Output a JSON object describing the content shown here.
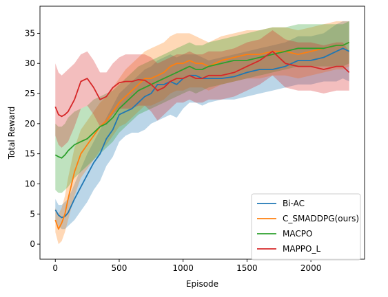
{
  "chart_data": {
    "type": "line",
    "xlabel": "Episode",
    "ylabel": "Total Reward",
    "xlim": [
      -120,
      2420
    ],
    "ylim": [
      -2.5,
      39.5
    ],
    "xticks": [
      0,
      500,
      1000,
      1500,
      2000
    ],
    "yticks": [
      0,
      5,
      10,
      15,
      20,
      25,
      30,
      35
    ],
    "legend_position": "lower-right",
    "series": [
      {
        "name": "Bi-AC",
        "color": "#1f77b4",
        "x": [
          0,
          25,
          50,
          75,
          100,
          150,
          200,
          250,
          300,
          350,
          400,
          450,
          500,
          550,
          600,
          650,
          700,
          750,
          800,
          850,
          900,
          950,
          1000,
          1050,
          1100,
          1150,
          1200,
          1300,
          1400,
          1500,
          1600,
          1700,
          1800,
          1900,
          2000,
          2100,
          2200,
          2250,
          2300
        ],
        "mean": [
          5.7,
          4.8,
          4.4,
          4.6,
          5.2,
          7.5,
          9.5,
          11.5,
          13.5,
          15.0,
          17.5,
          19.0,
          21.5,
          22.0,
          22.5,
          23.5,
          24.5,
          25.0,
          26.5,
          26.5,
          27.0,
          26.5,
          27.5,
          28.0,
          28.0,
          27.5,
          27.5,
          27.5,
          27.8,
          28.5,
          29.0,
          29.0,
          29.5,
          30.5,
          30.5,
          31.0,
          32.0,
          32.5,
          32.0
        ],
        "lower": [
          4.0,
          3.0,
          2.5,
          2.5,
          3.0,
          4.0,
          5.5,
          7.0,
          9.0,
          10.5,
          13.0,
          14.5,
          17.0,
          18.0,
          18.5,
          18.5,
          19.0,
          20.0,
          20.5,
          21.0,
          21.5,
          21.0,
          22.5,
          23.5,
          23.5,
          23.0,
          23.5,
          24.0,
          24.0,
          24.5,
          25.0,
          25.5,
          26.0,
          26.5,
          26.5,
          27.0,
          27.0,
          27.5,
          27.0
        ],
        "upper": [
          7.5,
          6.5,
          6.5,
          7.0,
          7.5,
          10.0,
          12.5,
          15.0,
          17.0,
          19.0,
          21.0,
          23.0,
          25.0,
          26.0,
          27.0,
          28.0,
          29.0,
          29.5,
          30.5,
          31.0,
          31.5,
          31.0,
          31.5,
          31.5,
          31.5,
          31.0,
          30.5,
          31.0,
          31.5,
          32.0,
          32.5,
          33.0,
          33.5,
          34.5,
          34.5,
          35.0,
          36.5,
          37.0,
          37.0
        ]
      },
      {
        "name": "C_SMADDPG(ours)",
        "color": "#ff7f0e",
        "x": [
          0,
          25,
          50,
          75,
          100,
          150,
          200,
          250,
          300,
          350,
          400,
          450,
          500,
          550,
          600,
          650,
          700,
          750,
          800,
          850,
          900,
          950,
          1000,
          1050,
          1100,
          1150,
          1200,
          1300,
          1400,
          1500,
          1600,
          1700,
          1800,
          1900,
          2000,
          2100,
          2200,
          2250,
          2300
        ],
        "mean": [
          4.0,
          2.5,
          3.5,
          5.0,
          7.5,
          12.0,
          15.0,
          16.5,
          18.0,
          19.5,
          20.5,
          22.0,
          23.5,
          24.5,
          25.5,
          26.5,
          27.5,
          27.5,
          28.0,
          28.5,
          29.5,
          30.0,
          30.0,
          30.5,
          30.0,
          30.0,
          29.5,
          30.5,
          31.0,
          31.5,
          31.5,
          32.0,
          32.0,
          31.5,
          32.0,
          32.5,
          33.0,
          33.0,
          33.5
        ],
        "lower": [
          2.0,
          0.0,
          0.5,
          2.0,
          4.0,
          8.0,
          11.0,
          12.5,
          14.0,
          15.5,
          16.5,
          18.0,
          19.5,
          20.0,
          21.0,
          22.0,
          23.0,
          23.0,
          23.5,
          24.0,
          25.0,
          25.5,
          25.5,
          26.0,
          26.0,
          26.0,
          25.5,
          26.5,
          27.0,
          27.5,
          27.5,
          28.0,
          28.0,
          27.5,
          28.0,
          28.5,
          29.0,
          29.0,
          29.5
        ],
        "upper": [
          6.0,
          5.0,
          6.0,
          8.0,
          11.0,
          16.0,
          19.0,
          20.5,
          22.0,
          23.5,
          24.5,
          26.0,
          27.5,
          29.0,
          30.0,
          31.0,
          32.0,
          32.5,
          33.0,
          33.5,
          34.5,
          35.0,
          35.0,
          35.0,
          34.5,
          34.0,
          33.5,
          34.5,
          35.0,
          35.5,
          35.5,
          36.0,
          36.0,
          35.5,
          36.0,
          36.5,
          37.0,
          37.0,
          37.0
        ]
      },
      {
        "name": "MACPO",
        "color": "#2ca02c",
        "x": [
          0,
          25,
          50,
          75,
          100,
          150,
          200,
          250,
          300,
          350,
          400,
          450,
          500,
          550,
          600,
          650,
          700,
          750,
          800,
          850,
          900,
          950,
          1000,
          1050,
          1100,
          1150,
          1200,
          1300,
          1400,
          1500,
          1600,
          1700,
          1800,
          1900,
          2000,
          2100,
          2200,
          2250,
          2300
        ],
        "mean": [
          14.8,
          14.5,
          14.3,
          14.8,
          15.5,
          16.5,
          17.0,
          17.5,
          18.5,
          19.5,
          20.0,
          21.0,
          22.5,
          23.5,
          24.5,
          25.5,
          26.0,
          26.5,
          27.0,
          27.5,
          28.0,
          28.5,
          29.0,
          29.5,
          29.0,
          29.0,
          29.5,
          30.0,
          30.5,
          30.5,
          31.0,
          31.5,
          32.0,
          32.5,
          32.5,
          32.5,
          33.0,
          33.0,
          33.5
        ],
        "lower": [
          9.0,
          8.5,
          8.5,
          9.0,
          9.5,
          11.0,
          12.0,
          13.0,
          14.0,
          15.0,
          16.0,
          17.0,
          18.5,
          19.5,
          20.5,
          21.5,
          22.0,
          22.5,
          23.0,
          23.5,
          24.0,
          24.5,
          25.0,
          25.5,
          25.0,
          25.5,
          26.0,
          26.5,
          27.0,
          27.5,
          28.0,
          28.5,
          29.0,
          29.5,
          29.5,
          29.5,
          29.5,
          29.5,
          30.0
        ],
        "upper": [
          20.0,
          19.5,
          19.5,
          20.0,
          21.0,
          22.0,
          22.5,
          23.0,
          24.0,
          24.5,
          25.0,
          25.5,
          26.5,
          27.5,
          28.5,
          29.5,
          30.0,
          30.5,
          31.0,
          31.5,
          32.0,
          32.5,
          33.0,
          33.5,
          33.0,
          33.0,
          33.5,
          34.0,
          34.5,
          35.0,
          35.5,
          36.0,
          36.0,
          36.5,
          36.5,
          36.5,
          36.5,
          36.5,
          37.0
        ]
      },
      {
        "name": "MAPPO_L",
        "color": "#d62728",
        "x": [
          0,
          25,
          50,
          75,
          100,
          150,
          200,
          250,
          300,
          350,
          400,
          450,
          500,
          550,
          600,
          650,
          700,
          750,
          800,
          850,
          900,
          950,
          1000,
          1050,
          1100,
          1150,
          1200,
          1300,
          1400,
          1500,
          1600,
          1700,
          1800,
          1900,
          2000,
          2100,
          2200,
          2250,
          2300
        ],
        "mean": [
          22.8,
          21.5,
          21.2,
          21.5,
          22.0,
          24.0,
          27.0,
          27.5,
          26.0,
          24.0,
          24.5,
          26.0,
          26.8,
          27.0,
          27.0,
          27.3,
          27.2,
          26.5,
          25.5,
          26.0,
          27.0,
          27.5,
          27.5,
          28.0,
          27.5,
          27.5,
          28.0,
          28.0,
          28.5,
          29.5,
          30.5,
          32.0,
          30.0,
          29.5,
          29.5,
          29.0,
          29.5,
          29.5,
          28.5
        ],
        "lower": [
          18.0,
          16.5,
          16.0,
          16.5,
          17.0,
          19.5,
          22.5,
          23.0,
          21.5,
          19.5,
          20.0,
          21.5,
          22.5,
          22.5,
          22.5,
          23.0,
          23.0,
          22.0,
          20.5,
          21.5,
          22.5,
          23.5,
          23.5,
          24.0,
          23.5,
          23.5,
          24.0,
          24.0,
          24.5,
          25.5,
          26.5,
          28.0,
          26.0,
          25.5,
          25.5,
          25.0,
          25.5,
          25.5,
          25.5
        ],
        "upper": [
          30.0,
          28.5,
          28.0,
          28.5,
          29.0,
          30.0,
          31.5,
          32.0,
          30.5,
          28.5,
          28.5,
          30.0,
          31.0,
          31.5,
          31.5,
          31.5,
          31.5,
          31.0,
          30.0,
          30.5,
          31.0,
          31.5,
          31.5,
          32.0,
          31.5,
          31.5,
          32.0,
          32.0,
          32.5,
          33.5,
          34.0,
          35.5,
          34.0,
          33.5,
          33.5,
          33.0,
          33.5,
          33.5,
          32.0
        ]
      }
    ]
  }
}
